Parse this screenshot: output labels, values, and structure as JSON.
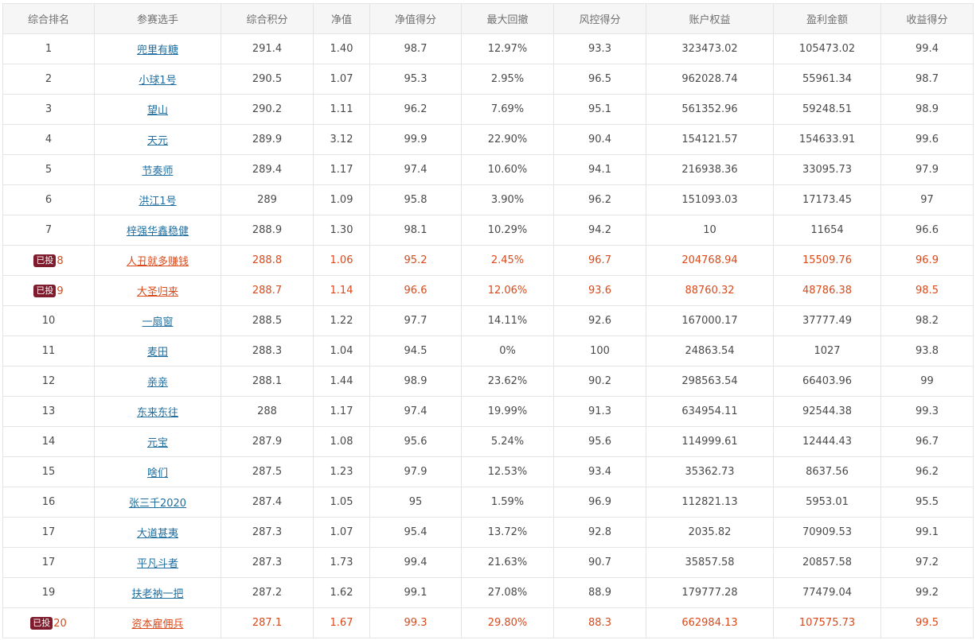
{
  "headers": [
    "综合排名",
    "参赛选手",
    "综合积分",
    "净值",
    "净值得分",
    "最大回撤",
    "风控得分",
    "账户权益",
    "盈利金额",
    "收益得分"
  ],
  "badge_label": "已投",
  "colors": {
    "link": "#1f6e9f",
    "invested_text": "#d84a1b",
    "badge_bg": "#7e1c2d",
    "header_bg": "#f6f6f6",
    "border": "#e4e4e4"
  },
  "rows": [
    {
      "rank": "1",
      "name": "兜里有糖",
      "score": "291.4",
      "nav": "1.40",
      "nav_score": "98.7",
      "max_dd": "12.97%",
      "risk_score": "93.3",
      "equity": "323473.02",
      "profit": "105473.02",
      "return_score": "99.4",
      "invested": false
    },
    {
      "rank": "2",
      "name": "小球1号",
      "score": "290.5",
      "nav": "1.07",
      "nav_score": "95.3",
      "max_dd": "2.95%",
      "risk_score": "96.5",
      "equity": "962028.74",
      "profit": "55961.34",
      "return_score": "98.7",
      "invested": false
    },
    {
      "rank": "3",
      "name": "望山",
      "score": "290.2",
      "nav": "1.11",
      "nav_score": "96.2",
      "max_dd": "7.69%",
      "risk_score": "95.1",
      "equity": "561352.96",
      "profit": "59248.51",
      "return_score": "98.9",
      "invested": false
    },
    {
      "rank": "4",
      "name": "天元",
      "score": "289.9",
      "nav": "3.12",
      "nav_score": "99.9",
      "max_dd": "22.90%",
      "risk_score": "90.4",
      "equity": "154121.57",
      "profit": "154633.91",
      "return_score": "99.6",
      "invested": false
    },
    {
      "rank": "5",
      "name": "节奏师",
      "score": "289.4",
      "nav": "1.17",
      "nav_score": "97.4",
      "max_dd": "10.60%",
      "risk_score": "94.1",
      "equity": "216938.36",
      "profit": "33095.73",
      "return_score": "97.9",
      "invested": false
    },
    {
      "rank": "6",
      "name": "洪江1号",
      "score": "289",
      "nav": "1.09",
      "nav_score": "95.8",
      "max_dd": "3.90%",
      "risk_score": "96.2",
      "equity": "151093.03",
      "profit": "17173.45",
      "return_score": "97",
      "invested": false
    },
    {
      "rank": "7",
      "name": "梓强华鑫稳健",
      "score": "288.9",
      "nav": "1.30",
      "nav_score": "98.1",
      "max_dd": "10.29%",
      "risk_score": "94.2",
      "equity": "10",
      "profit": "11654",
      "return_score": "96.6",
      "invested": false
    },
    {
      "rank": "8",
      "name": "人丑就多赚钱",
      "score": "288.8",
      "nav": "1.06",
      "nav_score": "95.2",
      "max_dd": "2.45%",
      "risk_score": "96.7",
      "equity": "204768.94",
      "profit": "15509.76",
      "return_score": "96.9",
      "invested": true
    },
    {
      "rank": "9",
      "name": "大圣归来",
      "score": "288.7",
      "nav": "1.14",
      "nav_score": "96.6",
      "max_dd": "12.06%",
      "risk_score": "93.6",
      "equity": "88760.32",
      "profit": "48786.38",
      "return_score": "98.5",
      "invested": true
    },
    {
      "rank": "10",
      "name": "一扇窗",
      "score": "288.5",
      "nav": "1.22",
      "nav_score": "97.7",
      "max_dd": "14.11%",
      "risk_score": "92.6",
      "equity": "167000.17",
      "profit": "37777.49",
      "return_score": "98.2",
      "invested": false
    },
    {
      "rank": "11",
      "name": "麦田",
      "score": "288.3",
      "nav": "1.04",
      "nav_score": "94.5",
      "max_dd": "0%",
      "risk_score": "100",
      "equity": "24863.54",
      "profit": "1027",
      "return_score": "93.8",
      "invested": false
    },
    {
      "rank": "12",
      "name": "亲亲",
      "score": "288.1",
      "nav": "1.44",
      "nav_score": "98.9",
      "max_dd": "23.62%",
      "risk_score": "90.2",
      "equity": "298563.54",
      "profit": "66403.96",
      "return_score": "99",
      "invested": false
    },
    {
      "rank": "13",
      "name": "东来东往",
      "score": "288",
      "nav": "1.17",
      "nav_score": "97.4",
      "max_dd": "19.99%",
      "risk_score": "91.3",
      "equity": "634954.11",
      "profit": "92544.38",
      "return_score": "99.3",
      "invested": false
    },
    {
      "rank": "14",
      "name": "元宝",
      "score": "287.9",
      "nav": "1.08",
      "nav_score": "95.6",
      "max_dd": "5.24%",
      "risk_score": "95.6",
      "equity": "114999.61",
      "profit": "12444.43",
      "return_score": "96.7",
      "invested": false
    },
    {
      "rank": "15",
      "name": "啥们",
      "score": "287.5",
      "nav": "1.23",
      "nav_score": "97.9",
      "max_dd": "12.53%",
      "risk_score": "93.4",
      "equity": "35362.73",
      "profit": "8637.56",
      "return_score": "96.2",
      "invested": false
    },
    {
      "rank": "16",
      "name": "张三千2020",
      "score": "287.4",
      "nav": "1.05",
      "nav_score": "95",
      "max_dd": "1.59%",
      "risk_score": "96.9",
      "equity": "112821.13",
      "profit": "5953.01",
      "return_score": "95.5",
      "invested": false
    },
    {
      "rank": "17",
      "name": "大道甚夷",
      "score": "287.3",
      "nav": "1.07",
      "nav_score": "95.4",
      "max_dd": "13.72%",
      "risk_score": "92.8",
      "equity": "2035.82",
      "profit": "70909.53",
      "return_score": "99.1",
      "invested": false
    },
    {
      "rank": "17",
      "name": "平凡斗者",
      "score": "287.3",
      "nav": "1.73",
      "nav_score": "99.4",
      "max_dd": "21.63%",
      "risk_score": "90.7",
      "equity": "35857.58",
      "profit": "20857.58",
      "return_score": "97.2",
      "invested": false
    },
    {
      "rank": "19",
      "name": "扶老衲一把",
      "score": "287.2",
      "nav": "1.62",
      "nav_score": "99.1",
      "max_dd": "27.08%",
      "risk_score": "88.9",
      "equity": "179777.28",
      "profit": "77479.04",
      "return_score": "99.2",
      "invested": false
    },
    {
      "rank": "20",
      "name": "资本雇佣兵",
      "score": "287.1",
      "nav": "1.67",
      "nav_score": "99.3",
      "max_dd": "29.80%",
      "risk_score": "88.3",
      "equity": "662984.13",
      "profit": "107575.73",
      "return_score": "99.5",
      "invested": true
    }
  ]
}
